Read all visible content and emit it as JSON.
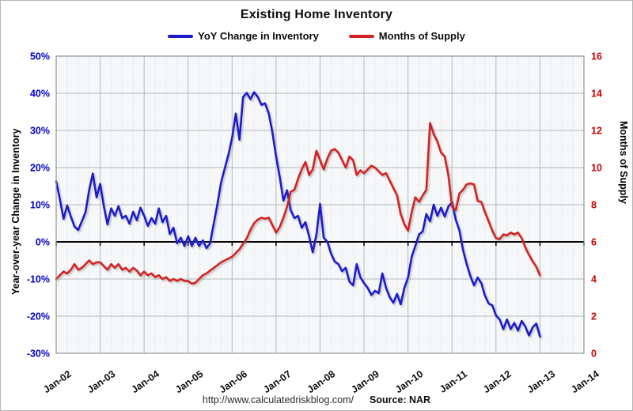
{
  "title": "Existing Home Inventory",
  "legend": [
    {
      "label": "YoY Change in Inventory",
      "color": "#1a1acc"
    },
    {
      "label": "Months of Supply",
      "color": "#d42020"
    }
  ],
  "left_axis": {
    "title": "Year-over-year Change in Inventory",
    "color": "#0000cc",
    "min": -30,
    "max": 50,
    "step": 10,
    "tick_labels": [
      "50%",
      "40%",
      "30%",
      "20%",
      "10%",
      "0%",
      "-10%",
      "-20%",
      "-30%"
    ]
  },
  "right_axis": {
    "title": "Months of Supply",
    "color": "#cc0000",
    "min": 0,
    "max": 16,
    "step": 2,
    "tick_labels": [
      "16",
      "14",
      "12",
      "10",
      "8",
      "6",
      "4",
      "2",
      "0"
    ]
  },
  "x_axis": {
    "tick_labels": [
      "Jan-02",
      "Jan-03",
      "Jan-04",
      "Jan-05",
      "Jan-06",
      "Jan-07",
      "Jan-08",
      "Jan-09",
      "Jan-10",
      "Jan-11",
      "Jan-12",
      "Jan-13",
      "Jan-14"
    ],
    "months_total": 144
  },
  "footer": {
    "url": "http://www.calculatedriskblog.com/",
    "source": "Source: NAR"
  },
  "chart_data": {
    "type": "line",
    "title": "Existing Home Inventory",
    "x_start": "Jan-2002",
    "x_end": "Jan-2013",
    "frequency": "monthly",
    "grid": "major-years-and-10pct, minor-quarterly-dotted",
    "legend_position": "top-center",
    "series": [
      {
        "name": "YoY Change in Inventory",
        "axis": "left",
        "units": "%",
        "color": "#1a1acc",
        "values": [
          16.3,
          11.5,
          6.2,
          9.8,
          6.8,
          4.1,
          3.2,
          5.5,
          8.0,
          14.0,
          18.4,
          12.0,
          15.6,
          9.6,
          4.7,
          9.0,
          7.0,
          9.6,
          6.4,
          7.0,
          4.9,
          8.1,
          5.8,
          9.2,
          7.0,
          4.3,
          6.4,
          4.9,
          9.0,
          5.3,
          7.0,
          2.1,
          3.8,
          -0.4,
          1.1,
          -1.1,
          1.5,
          -1.1,
          1.1,
          -1.1,
          0.4,
          -1.7,
          -0.4,
          5.0,
          10.2,
          16.0,
          19.8,
          23.5,
          28.0,
          34.5,
          27.5,
          39.0,
          40.1,
          38.4,
          40.3,
          39.0,
          36.9,
          37.3,
          34.5,
          29.4,
          23.0,
          17.5,
          11.1,
          13.9,
          8.5,
          6.4,
          7.0,
          3.8,
          5.3,
          1.5,
          -2.8,
          2.0,
          10.2,
          1.1,
          0.0,
          -3.2,
          -5.3,
          -6.0,
          -7.9,
          -7.0,
          -10.7,
          -11.7,
          -6.0,
          -9.6,
          -11.1,
          -12.4,
          -14.3,
          -13.2,
          -13.8,
          -8.5,
          -12.4,
          -14.9,
          -16.4,
          -14.0,
          -16.8,
          -12.4,
          -9.6,
          -4.0,
          -1.1,
          2.0,
          2.8,
          7.5,
          5.5,
          10.0,
          7.0,
          9.2,
          6.8,
          9.5,
          10.7,
          6.0,
          3.2,
          -2.1,
          -6.0,
          -9.2,
          -11.7,
          -9.6,
          -11.1,
          -14.5,
          -16.6,
          -17.1,
          -19.8,
          -20.9,
          -23.5,
          -20.9,
          -23.5,
          -21.8,
          -23.9,
          -21.3,
          -22.8,
          -25.2,
          -23.0,
          -22.0,
          -25.5
        ]
      },
      {
        "name": "Months of Supply",
        "axis": "right",
        "units": "months",
        "color": "#d42020",
        "values": [
          4.0,
          4.2,
          4.4,
          4.3,
          4.5,
          4.8,
          4.5,
          4.6,
          4.8,
          5.0,
          4.8,
          4.9,
          4.9,
          4.7,
          4.5,
          4.8,
          4.6,
          4.8,
          4.5,
          4.6,
          4.4,
          4.6,
          4.45,
          4.2,
          4.4,
          4.2,
          4.3,
          4.1,
          4.2,
          4.0,
          4.1,
          3.9,
          4.0,
          3.9,
          4.0,
          3.9,
          3.9,
          3.75,
          3.8,
          4.0,
          4.2,
          4.3,
          4.45,
          4.6,
          4.75,
          4.9,
          5.0,
          5.1,
          5.2,
          5.4,
          5.6,
          5.9,
          6.2,
          6.65,
          7.0,
          7.2,
          7.3,
          7.25,
          7.3,
          6.9,
          6.5,
          6.8,
          7.3,
          7.9,
          8.7,
          8.8,
          9.4,
          9.9,
          10.3,
          9.6,
          9.9,
          10.9,
          10.4,
          9.9,
          10.5,
          10.9,
          11.0,
          10.8,
          10.4,
          10.0,
          10.6,
          10.4,
          9.6,
          9.85,
          9.7,
          9.9,
          10.1,
          10.0,
          9.8,
          9.6,
          9.7,
          9.3,
          8.9,
          8.5,
          7.5,
          6.95,
          6.6,
          7.6,
          8.4,
          8.15,
          8.5,
          8.8,
          12.4,
          11.8,
          11.4,
          10.8,
          10.6,
          9.6,
          7.9,
          7.7,
          8.6,
          8.8,
          9.1,
          9.15,
          9.1,
          8.2,
          8.15,
          7.6,
          7.1,
          6.6,
          6.2,
          6.15,
          6.4,
          6.35,
          6.5,
          6.4,
          6.5,
          6.2,
          5.7,
          5.3,
          4.95,
          4.65,
          4.2
        ]
      }
    ],
    "left_ylim": [
      -30,
      50
    ],
    "right_ylim": [
      0,
      16
    ]
  }
}
